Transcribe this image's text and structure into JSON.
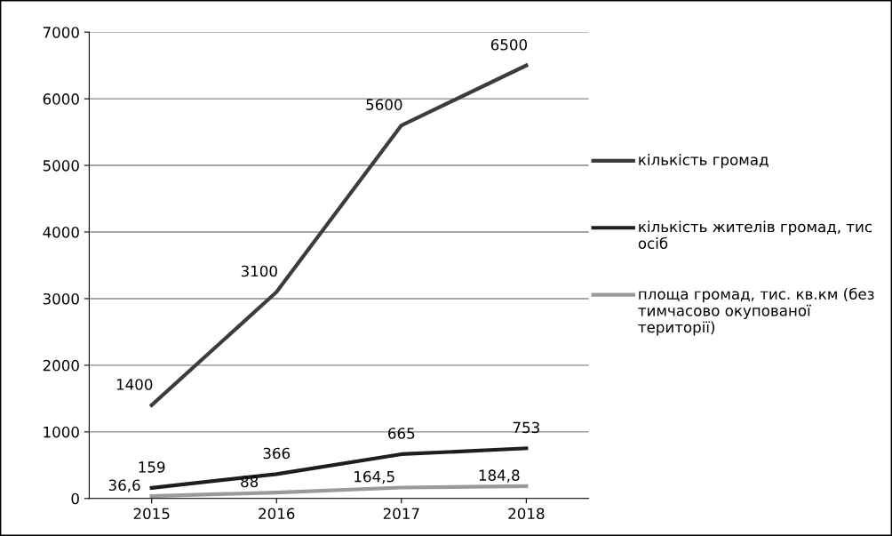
{
  "chart_data": {
    "type": "line",
    "categories": [
      "2015",
      "2016",
      "2017",
      "2018"
    ],
    "series": [
      {
        "name": "кількість громад",
        "color": "#3c3c3c",
        "values": [
          1400,
          3100,
          5600,
          6500
        ],
        "value_labels": [
          "1400",
          "3100",
          "5600",
          "6500"
        ]
      },
      {
        "name": "кількість жителів громад, тис осіб",
        "color": "#1e1e1e",
        "values": [
          159,
          366,
          665,
          753
        ],
        "value_labels": [
          "159",
          "366",
          "665",
          "753"
        ]
      },
      {
        "name": "площа громад, тис. кв.км (без тимчасово окупованої території)",
        "color": "#9a9a9a",
        "values": [
          36.6,
          88,
          164.5,
          184.8
        ],
        "value_labels": [
          "36,6",
          "88",
          "164,5",
          "184,8"
        ]
      }
    ],
    "ylim": [
      0,
      7000
    ],
    "yticks": [
      0,
      1000,
      2000,
      3000,
      4000,
      5000,
      6000,
      7000
    ],
    "grid": "y",
    "legend": "right",
    "line_style": "solid",
    "marker": "none"
  }
}
